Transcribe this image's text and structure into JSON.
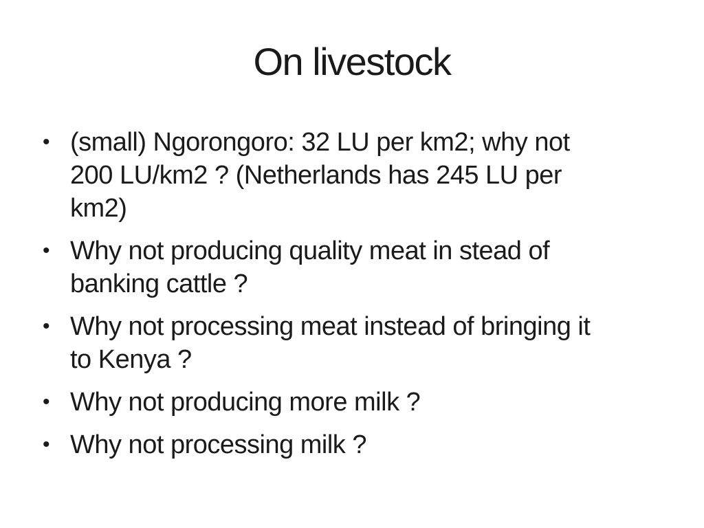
{
  "slide": {
    "title": "On livestock",
    "bullet_glyph": "•",
    "bullets": [
      {
        "lines": [
          "(small) Ngorongoro: 32 LU per km2; why not",
          "200 LU/km2 ? (Netherlands has 245 LU per",
          "km2)"
        ]
      },
      {
        "lines": [
          "Why not producing quality meat in stead of",
          "banking cattle ?"
        ]
      },
      {
        "lines": [
          "Why not processing meat instead of bringing it",
          "to Kenya ?"
        ]
      },
      {
        "lines": [
          "Why not producing more milk ?"
        ]
      },
      {
        "lines": [
          "Why not processing milk ?"
        ]
      }
    ],
    "colors": {
      "background": "#ffffff",
      "text": "#1a1a1a"
    }
  }
}
